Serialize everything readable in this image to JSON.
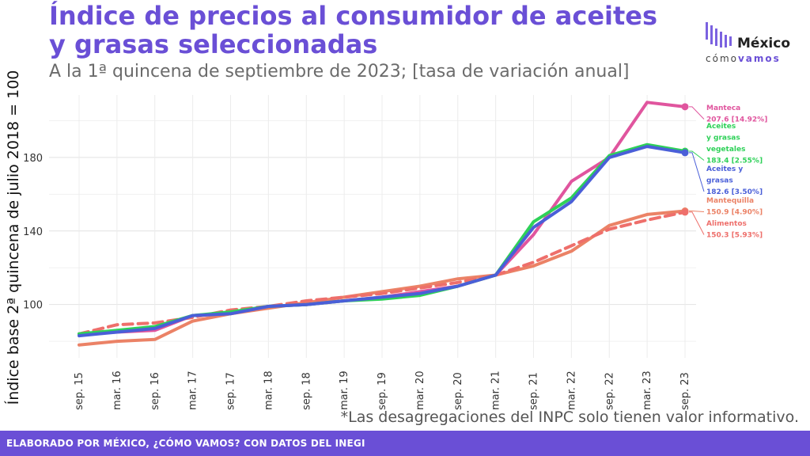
{
  "title": "Índice de precios al consumidor de aceites y grasas seleccionadas",
  "subtitle": "A la 1ª quincena de septiembre de 2023; [tasa de variación anual]",
  "logo": {
    "top": "México",
    "bottom_light": "cómo",
    "bottom_bold": "vamos"
  },
  "footnote": "*Las desagregaciones del INPC solo tienen valor informativo.",
  "footer": "ELABORADO POR MÉXICO, ¿CÓMO VAMOS? CON DATOS DEL INEGI",
  "colors": {
    "brand": "#6a4fd6",
    "manteca": "#e0559e",
    "aceites_vegetales": "#2ed158",
    "aceites_grasas": "#4a5fd8",
    "mantequilla": "#eb8266",
    "alimentos": "#ee6f6b"
  },
  "chart_data": {
    "type": "line",
    "ylabel": "Índice base 2ª quincena de julio 2018 = 100",
    "xlabel": "",
    "ylim": [
      71,
      214
    ],
    "yticks": [
      100,
      140,
      180
    ],
    "grid": true,
    "x": [
      "sep. 15",
      "mar. 16",
      "sep. 16",
      "mar. 17",
      "sep. 17",
      "mar. 18",
      "sep. 18",
      "mar. 19",
      "sep. 19",
      "mar. 20",
      "sep. 20",
      "mar. 21",
      "sep. 21",
      "mar. 22",
      "sep. 22",
      "mar. 23",
      "sep. 23"
    ],
    "series": [
      {
        "name": "Manteca",
        "label": [
          "Manteca",
          "207.6 [14.92%]"
        ],
        "color": "#e0559e",
        "dash": false,
        "values": [
          84,
          85,
          86,
          94,
          95,
          99,
          100,
          102,
          104,
          107,
          110,
          116,
          138,
          167,
          180,
          210,
          207.6
        ]
      },
      {
        "name": "Aceites y grasas vegetales",
        "label": [
          "Aceites",
          "y grasas",
          "vegetales",
          "183.4 [2.55%]"
        ],
        "color": "#2ed158",
        "dash": false,
        "values": [
          84,
          86,
          88,
          94,
          96,
          99,
          100,
          102,
          103,
          105,
          110,
          116,
          145,
          158,
          181,
          187,
          183.4
        ]
      },
      {
        "name": "Aceites y grasas",
        "label": [
          "Aceites y",
          "grasas",
          "182.6 [3.50%]"
        ],
        "color": "#4a5fd8",
        "dash": false,
        "values": [
          83,
          85,
          87,
          94,
          95,
          99,
          100,
          102,
          104,
          106,
          110,
          116,
          142,
          156,
          180,
          186,
          182.6
        ]
      },
      {
        "name": "Mantequilla",
        "label": [
          "Mantequilla",
          "150.9 [4.90%]"
        ],
        "color": "#eb8266",
        "dash": false,
        "values": [
          78,
          80,
          81,
          91,
          95,
          98,
          101,
          104,
          107,
          110,
          114,
          116,
          121,
          129,
          143,
          149,
          150.9
        ]
      },
      {
        "name": "Alimentos",
        "label": [
          "Alimentos",
          "150.3 [5.93%]"
        ],
        "color": "#ee6f6b",
        "dash": true,
        "values": [
          84,
          89,
          90,
          93,
          97,
          99,
          102,
          104,
          106,
          109,
          112,
          116,
          123,
          132,
          141,
          146,
          150.3
        ]
      }
    ],
    "legend": "right (end-of-line labels)"
  }
}
